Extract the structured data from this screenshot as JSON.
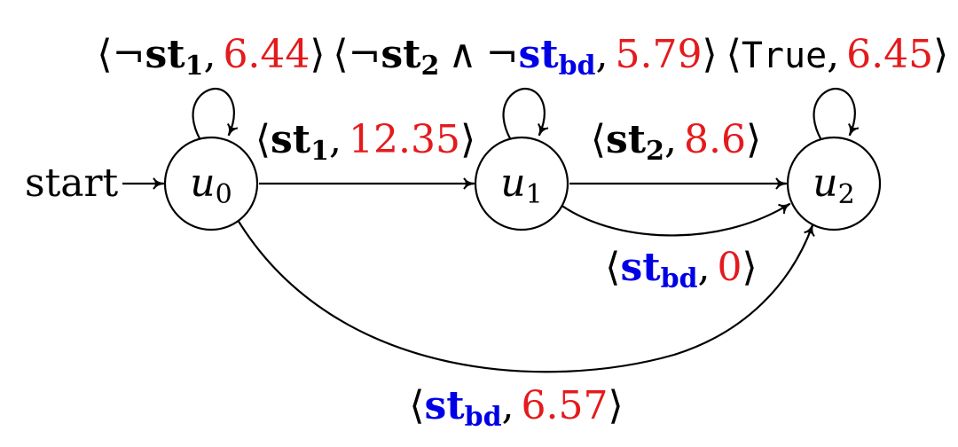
{
  "colors": {
    "label_red": "#e41a1c",
    "label_blue": "#0000e6",
    "stroke": "#000000"
  },
  "nodes": [
    {
      "id": "u0",
      "name": "u",
      "sub": "0"
    },
    {
      "id": "u1",
      "name": "u",
      "sub": "1"
    },
    {
      "id": "u2",
      "name": "u",
      "sub": "2"
    }
  ],
  "start_label": "start",
  "symbols": {
    "open": "⟨",
    "close": "⟩",
    "comma": ",",
    "not": "¬",
    "and": "∧"
  },
  "edges": {
    "u0_self": {
      "atom": "st",
      "sub": "1",
      "value": "6.44"
    },
    "u1_self": {
      "atom_a": "st",
      "sub_a": "2",
      "atom_b": "st",
      "sub_b": "bd",
      "value": "5.79"
    },
    "u2_self": {
      "literal": "True",
      "value": "6.45"
    },
    "u0_u1": {
      "atom": "st",
      "sub": "1",
      "value": "12.35"
    },
    "u1_u2": {
      "atom": "st",
      "sub": "2",
      "value": "8.6"
    },
    "u1_u2_bd": {
      "atom": "st",
      "sub": "bd",
      "value": "0"
    },
    "u0_u2_bd": {
      "atom": "st",
      "sub": "bd",
      "value": "6.57"
    }
  }
}
